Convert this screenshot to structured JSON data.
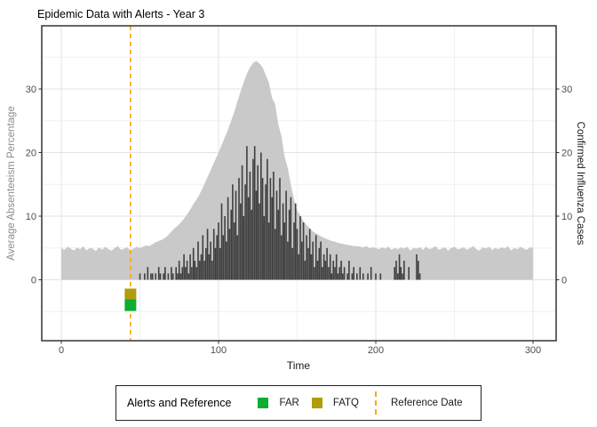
{
  "title": "Epidemic Data with Alerts - Year 3",
  "axes": {
    "x_label": "Time",
    "y_left_label": "Average Absenteeism Percentage",
    "y_right_label": "Confirmed Influenza Cases"
  },
  "legend": {
    "title": "Alerts and Reference",
    "items": [
      {
        "label": "FAR",
        "type": "square",
        "color": "#0CAD31"
      },
      {
        "label": "FATQ",
        "type": "square",
        "color": "#B09C0C"
      },
      {
        "label": "Reference Date",
        "type": "dashed-line",
        "color": "#FFA500"
      }
    ]
  },
  "chart_data": {
    "type": "combo",
    "title": "Epidemic Data with Alerts - Year 3",
    "xlabel": "Time",
    "ylabel_left": "Average Absenteeism Percentage",
    "ylabel_right": "Confirmed Influenza Cases",
    "xlim": [
      -12,
      315
    ],
    "ylim": [
      -9.6,
      39.8
    ],
    "x_ticks": [
      0,
      100,
      200,
      300
    ],
    "y_ticks": [
      0,
      10,
      20,
      30
    ],
    "x_minor_ticks": [
      50,
      150,
      250
    ],
    "y_minor_ticks": [
      -5,
      5,
      15,
      25,
      35
    ],
    "grid": true,
    "series": [
      {
        "name": "Average Absenteeism Percentage",
        "type": "area",
        "axis": "left",
        "color": "#C9C9C9",
        "x_start": 0,
        "x_step": 2,
        "values": [
          5.0,
          4.7,
          5.2,
          4.9,
          4.6,
          5.1,
          4.8,
          5.3,
          4.6,
          5.0,
          4.9,
          4.5,
          5.1,
          4.7,
          5.2,
          4.8,
          4.6,
          5.0,
          5.3,
          4.7,
          4.9,
          5.1,
          4.6,
          4.9,
          5.2,
          5.0,
          5.2,
          5.4,
          5.3,
          5.6,
          5.9,
          6.1,
          6.3,
          6.6,
          7.0,
          7.6,
          8.1,
          8.5,
          9.0,
          9.6,
          10.3,
          11.0,
          11.9,
          12.6,
          13.5,
          14.5,
          15.6,
          16.7,
          17.8,
          18.9,
          20.0,
          21.2,
          22.4,
          23.6,
          25.0,
          26.4,
          28.0,
          29.6,
          31.0,
          32.4,
          33.4,
          34.1,
          34.4,
          34.0,
          33.4,
          32.2,
          31.0,
          28.6,
          27.6,
          24.4,
          22.6,
          19.4,
          17.6,
          14.9,
          12.6,
          10.9,
          10.1,
          9.2,
          8.6,
          8.1,
          7.6,
          7.3,
          7.0,
          6.7,
          6.5,
          6.3,
          6.1,
          6.0,
          5.8,
          5.7,
          5.6,
          5.5,
          5.4,
          5.3,
          5.3,
          5.2,
          5.1,
          5.3,
          5.0,
          5.1,
          5.0,
          4.8,
          5.1,
          4.9,
          5.2,
          4.7,
          5.0,
          4.8,
          5.1,
          4.9,
          5.2,
          4.6,
          5.0,
          4.9,
          5.1,
          4.7,
          5.2,
          4.8,
          5.0,
          5.3,
          4.7,
          4.9,
          5.1,
          4.6,
          5.0,
          5.2,
          4.8,
          4.9,
          5.1,
          4.7,
          5.0,
          5.3,
          4.8,
          4.6,
          5.1,
          4.9,
          5.2,
          4.7,
          5.0,
          4.8,
          5.1,
          4.9,
          5.3,
          4.6,
          5.0,
          4.8,
          5.2,
          4.9,
          4.7,
          5.1,
          5.0
        ]
      },
      {
        "name": "Confirmed Influenza Cases",
        "type": "bar",
        "axis": "right",
        "color": "#3F3F3F",
        "x_start": 50,
        "x_step": 1,
        "values": [
          1,
          0,
          0,
          1,
          0,
          2,
          0,
          1,
          1,
          0,
          1,
          0,
          2,
          1,
          0,
          1,
          2,
          0,
          1,
          0,
          2,
          1,
          0,
          2,
          1,
          3,
          1,
          2,
          4,
          2,
          3,
          1,
          4,
          2,
          5,
          3,
          2,
          6,
          3,
          4,
          7,
          3,
          5,
          8,
          4,
          6,
          3,
          8,
          5,
          7,
          9,
          5,
          12,
          7,
          10,
          6,
          13,
          8,
          11,
          15,
          9,
          14,
          7,
          16,
          12,
          18,
          10,
          15,
          21,
          13,
          17,
          11,
          19,
          21,
          14,
          18,
          12,
          20,
          16,
          10,
          15,
          19,
          9,
          16,
          13,
          17,
          8,
          14,
          11,
          16,
          7,
          12,
          9,
          14,
          6,
          11,
          13,
          5,
          9,
          12,
          8,
          4,
          10,
          6,
          9,
          3,
          7,
          5,
          8,
          4,
          6,
          2,
          7,
          3,
          5,
          6,
          2,
          4,
          3,
          5,
          2,
          4,
          1,
          3,
          2,
          4,
          1,
          2,
          3,
          1,
          2,
          0,
          1,
          3,
          0,
          1,
          2,
          0,
          1,
          0,
          2,
          0,
          1,
          0,
          0,
          1,
          0,
          2,
          0,
          0,
          1,
          0,
          0,
          1,
          0,
          0,
          0,
          0,
          0,
          0,
          0,
          0,
          2,
          3,
          1,
          4,
          2,
          1,
          3,
          0,
          0,
          2,
          0,
          0,
          0,
          0,
          4,
          3,
          1,
          0,
          0
        ]
      }
    ],
    "annotations": {
      "reference_date": {
        "x": 44,
        "style": "dashed",
        "color": "#FFA500"
      },
      "alerts": [
        {
          "label": "FATQ",
          "x": 44,
          "y": -2.3,
          "color": "#B09C0C"
        },
        {
          "label": "FAR",
          "x": 44,
          "y": -4.0,
          "color": "#0CAD31"
        }
      ]
    },
    "legend_position": "bottom"
  }
}
